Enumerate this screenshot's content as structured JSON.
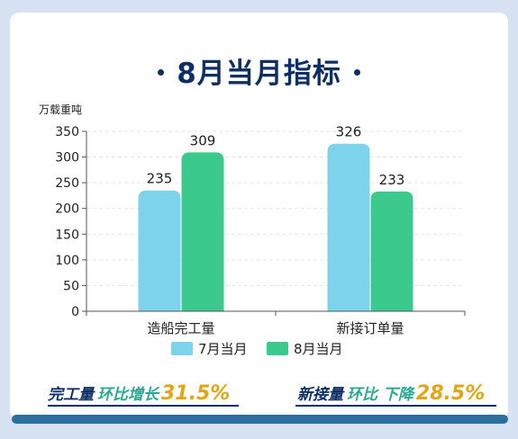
{
  "title": "8月当月指标",
  "chart_data": {
    "type": "bar",
    "ylabel": "万载重吨",
    "ylim": [
      0,
      350
    ],
    "yticks": [
      0,
      50,
      100,
      150,
      200,
      250,
      300,
      350
    ],
    "categories": [
      "造船完工量",
      "新接订单量"
    ],
    "series": [
      {
        "name": "7月当月",
        "values": [
          235,
          326
        ],
        "color": "#7dd3ec"
      },
      {
        "name": "8月当月",
        "values": [
          309,
          233
        ],
        "color": "#3cc98e"
      }
    ],
    "legend_position": "bottom"
  },
  "stats": [
    {
      "label": "完工量",
      "metric": "环比增长",
      "value": "31.5%"
    },
    {
      "label": "新接量",
      "metric": "环比 下降",
      "value": "28.5%"
    }
  ]
}
